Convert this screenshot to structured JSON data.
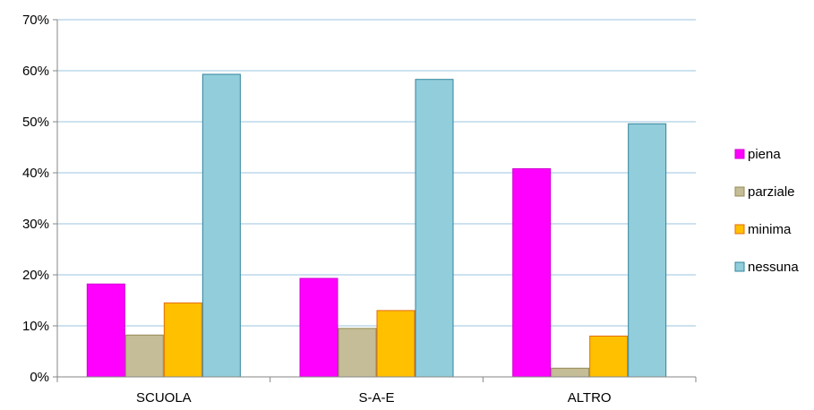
{
  "chart_data": {
    "type": "bar",
    "title": "",
    "xlabel": "",
    "ylabel": "",
    "categories": [
      "SCUOLA",
      "S-A-E",
      "ALTRO"
    ],
    "series": [
      {
        "name": "piena",
        "values": [
          18.2,
          19.3,
          40.8
        ],
        "color": "#FF00FF",
        "border": "#D000D0"
      },
      {
        "name": "parziale",
        "values": [
          8.2,
          9.5,
          1.7
        ],
        "color": "#C4BD97",
        "border": "#948A54"
      },
      {
        "name": "minima",
        "values": [
          14.5,
          13.0,
          8.0
        ],
        "color": "#FFC000",
        "border": "#E46C0A"
      },
      {
        "name": "nessuna",
        "values": [
          59.3,
          58.3,
          49.6
        ],
        "color": "#92CDDC",
        "border": "#31859C"
      }
    ],
    "ylim": [
      0,
      70
    ],
    "yticks": [
      "0%",
      "10%",
      "20%",
      "30%",
      "40%",
      "50%",
      "60%",
      "70%"
    ],
    "grid": true,
    "legend_position": "right"
  }
}
